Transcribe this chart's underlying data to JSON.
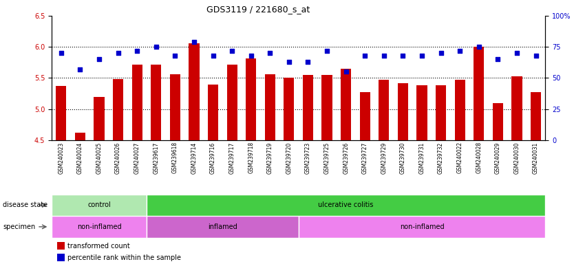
{
  "title": "GDS3119 / 221680_s_at",
  "samples": [
    "GSM240023",
    "GSM240024",
    "GSM240025",
    "GSM240026",
    "GSM240027",
    "GSM239617",
    "GSM239618",
    "GSM239714",
    "GSM239716",
    "GSM239717",
    "GSM239718",
    "GSM239719",
    "GSM239720",
    "GSM239723",
    "GSM239725",
    "GSM239726",
    "GSM239727",
    "GSM239729",
    "GSM239730",
    "GSM239731",
    "GSM239732",
    "GSM240022",
    "GSM240028",
    "GSM240029",
    "GSM240030",
    "GSM240031"
  ],
  "bar_values": [
    5.37,
    4.62,
    5.2,
    5.48,
    5.72,
    5.72,
    5.56,
    6.06,
    5.4,
    5.72,
    5.82,
    5.56,
    5.5,
    5.55,
    5.55,
    5.65,
    5.27,
    5.47,
    5.42,
    5.38,
    5.38,
    5.47,
    6.0,
    5.1,
    5.53,
    5.27
  ],
  "percentile_right": [
    70,
    57,
    65,
    70,
    72,
    75,
    68,
    79,
    68,
    72,
    68,
    70,
    63,
    63,
    72,
    55,
    68,
    68,
    68,
    68,
    70,
    72,
    75,
    65,
    70,
    68
  ],
  "ylim_left": [
    4.5,
    6.5
  ],
  "ylim_right": [
    0,
    100
  ],
  "yticks_left": [
    4.5,
    5.0,
    5.5,
    6.0,
    6.5
  ],
  "yticks_right": [
    0,
    25,
    50,
    75,
    100
  ],
  "bar_color": "#cc0000",
  "marker_color": "#0000cc",
  "plot_bg_color": "#ffffff",
  "xtick_area_color": "#d3d3d3",
  "disease_state_groups": [
    {
      "label": "control",
      "start": 0,
      "end": 5,
      "color": "#b0e8b0"
    },
    {
      "label": "ulcerative colitis",
      "start": 5,
      "end": 26,
      "color": "#44cc44"
    }
  ],
  "specimen_groups": [
    {
      "label": "non-inflamed",
      "start": 0,
      "end": 5,
      "color": "#ee82ee"
    },
    {
      "label": "inflamed",
      "start": 5,
      "end": 13,
      "color": "#cc66cc"
    },
    {
      "label": "non-inflamed",
      "start": 13,
      "end": 26,
      "color": "#ee82ee"
    }
  ],
  "disease_state_label": "disease state",
  "specimen_label": "specimen",
  "legend_items": [
    {
      "label": "transformed count",
      "color": "#cc0000"
    },
    {
      "label": "percentile rank within the sample",
      "color": "#0000cc"
    }
  ]
}
